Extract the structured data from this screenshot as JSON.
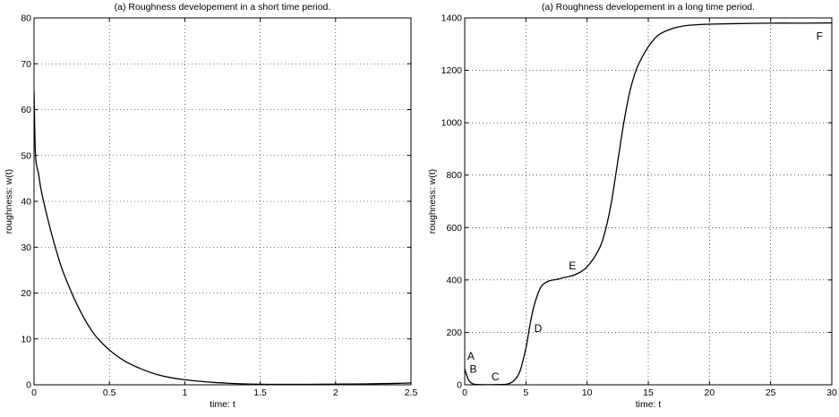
{
  "chart_data": [
    {
      "type": "line",
      "title": "(a) Roughness developement in a short time period.",
      "xlabel": "time: t",
      "ylabel": "roughness: w(t)",
      "xlim": [
        0,
        2.5
      ],
      "ylim": [
        0,
        80
      ],
      "xticks": [
        "0",
        "0.5",
        "1",
        "1.5",
        "2",
        "2.5"
      ],
      "yticks": [
        "0",
        "10",
        "20",
        "30",
        "40",
        "50",
        "60",
        "70",
        "80"
      ],
      "grid": true,
      "series": [
        {
          "x": [
            0,
            0.01,
            0.03,
            0.05,
            0.1,
            0.15,
            0.2,
            0.3,
            0.4,
            0.5,
            0.6,
            0.7,
            0.8,
            0.9,
            1.0,
            1.2,
            1.4,
            1.6,
            1.8,
            2.0,
            2.2,
            2.4,
            2.5
          ],
          "values": [
            64,
            50,
            46,
            42,
            35,
            29,
            24,
            16.5,
            11,
            7.6,
            5.2,
            3.6,
            2.4,
            1.6,
            1.1,
            0.5,
            0.2,
            0.1,
            0.1,
            0.15,
            0.2,
            0.3,
            0.4
          ]
        }
      ],
      "annotations": []
    },
    {
      "type": "line",
      "title": "(a) Roughness developement in a long time period.",
      "xlabel": "time: t",
      "ylabel": "roughness: w(t)",
      "xlim": [
        0,
        30
      ],
      "ylim": [
        0,
        1400
      ],
      "xticks": [
        "0",
        "5",
        "10",
        "15",
        "20",
        "25",
        "30"
      ],
      "yticks": [
        "0",
        "200",
        "400",
        "600",
        "800",
        "1000",
        "1200",
        "1400"
      ],
      "grid": true,
      "series": [
        {
          "x": [
            0,
            0.3,
            0.6,
            1,
            2,
            3,
            3.5,
            4,
            4.5,
            5,
            5.3,
            5.6,
            6,
            6.3,
            6.6,
            7,
            7.5,
            8,
            9,
            10,
            11,
            11.5,
            12,
            12.5,
            13,
            13.5,
            14,
            14.5,
            15,
            15.5,
            16,
            17,
            18,
            19,
            20,
            22,
            25,
            28,
            30
          ],
          "values": [
            60,
            20,
            5,
            1,
            0.5,
            1,
            3,
            15,
            50,
            140,
            220,
            290,
            350,
            378,
            390,
            398,
            402,
            408,
            420,
            450,
            520,
            590,
            700,
            850,
            1000,
            1120,
            1200,
            1250,
            1290,
            1320,
            1340,
            1360,
            1370,
            1374,
            1376,
            1378,
            1380,
            1380,
            1381
          ]
        }
      ],
      "annotations": [
        {
          "text": "A",
          "x": 0.5,
          "y": 110
        },
        {
          "text": "B",
          "x": 0.7,
          "y": 60
        },
        {
          "text": "C",
          "x": 2.5,
          "y": 30
        },
        {
          "text": "D",
          "x": 6.0,
          "y": 215
        },
        {
          "text": "E",
          "x": 8.8,
          "y": 455
        },
        {
          "text": "F",
          "x": 29.0,
          "y": 1330
        }
      ]
    }
  ]
}
